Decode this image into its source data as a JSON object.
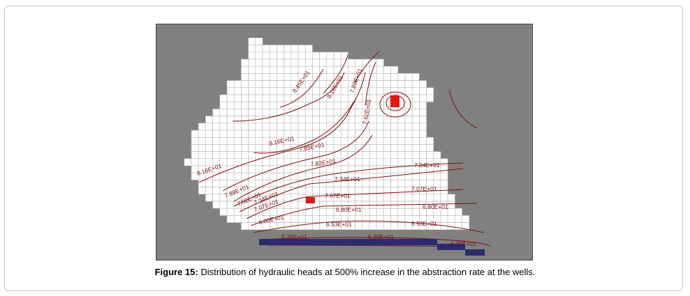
{
  "figure": {
    "contour_labels": [
      "8.45E+01",
      "8.16E+01",
      "7.89E+01",
      "7.62E+01",
      "8.16E+01",
      "8.16E+01",
      "7.89E+01",
      "7.82E+01",
      "7.89E+01",
      "7.82E+01",
      "7.34E+01",
      "7.34E+01",
      "7.07E+01",
      "7.07E+01",
      "7.07E+01",
      "7.34E+01",
      "6.80E+01",
      "6.80E+01",
      "6.80E+01",
      "6.53E+01",
      "6.53E+01",
      "6.25E+01",
      "6.25E+01",
      "6.25E+01"
    ]
  },
  "caption": {
    "label": "Figure 15:",
    "text": " Distribution of hydraulic heads at 500% increase in the abstraction rate at the wells."
  }
}
